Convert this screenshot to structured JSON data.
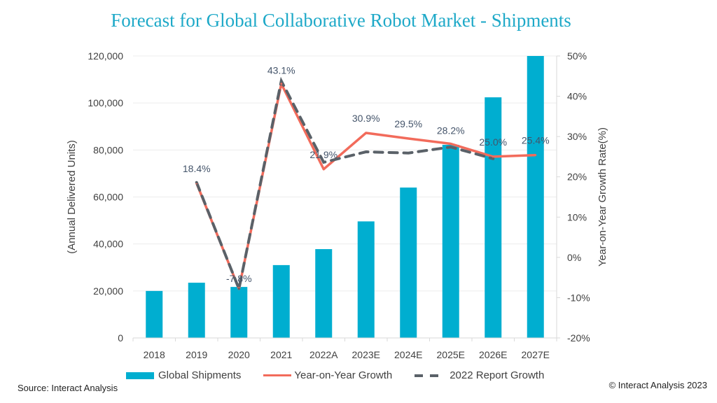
{
  "title": "Forecast for Global Collaborative Robot Market - Shipments",
  "source": "Source: Interact Analysis",
  "copyright": "© Interact Analysis 2023",
  "colors": {
    "title": "#1ea9c8",
    "bars": "#00aed0",
    "yoy_line": "#f26b5b",
    "report_line": "#5a6168"
  },
  "chart_data": {
    "type": "bar",
    "title": "Forecast for Global Collaborative Robot Market - Shipments",
    "categories": [
      "2018",
      "2019",
      "2020",
      "2021",
      "2022A",
      "2023E",
      "2024E",
      "2025E",
      "2026E",
      "2027E"
    ],
    "xlabel": "",
    "ylabel": "(Annual Delivered Units)",
    "y2label": "Year-on-Year Growth Rate(%)",
    "ylim": [
      0,
      120000
    ],
    "y2lim": [
      -20,
      50
    ],
    "yticks": [
      "0",
      "20,000",
      "40,000",
      "60,000",
      "80,000",
      "100,000",
      "120,000"
    ],
    "y2ticks": [
      "-20%",
      "-10%",
      "0%",
      "10%",
      "20%",
      "30%",
      "40%",
      "50%"
    ],
    "grid": true,
    "legend_position": "bottom",
    "series": [
      {
        "name": "Global Shipments",
        "type": "bar",
        "axis": "left",
        "values": [
          20000,
          23500,
          21700,
          31000,
          37800,
          49600,
          64000,
          82200,
          102400,
          120000
        ]
      },
      {
        "name": "Year-on-Year Growth",
        "type": "line",
        "axis": "right",
        "values": [
          null,
          18.4,
          -7.8,
          43.1,
          21.9,
          30.9,
          29.5,
          28.2,
          25.0,
          25.4
        ],
        "labels": [
          "",
          "18.4%",
          "-7.8%",
          "43.1%",
          "21.9%",
          "30.9%",
          "29.5%",
          "28.2%",
          "25.0%",
          "25.4%"
        ]
      },
      {
        "name": "2022 Report Growth",
        "type": "line",
        "style": "dashed",
        "axis": "right",
        "values": [
          null,
          18.6,
          -7.8,
          43.8,
          23.6,
          26.2,
          25.9,
          27.4,
          24.5,
          null
        ]
      }
    ]
  }
}
